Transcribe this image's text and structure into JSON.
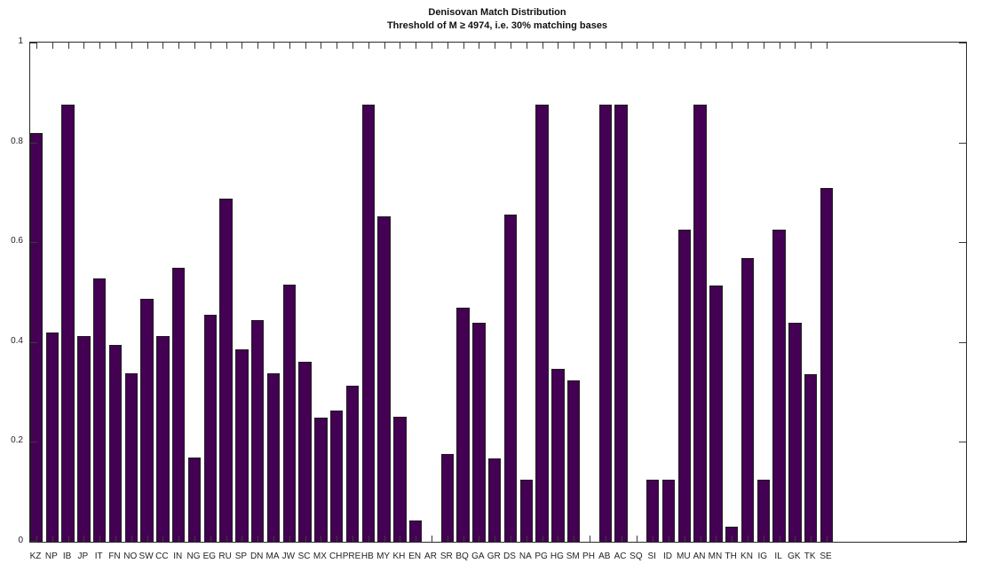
{
  "chart_data": {
    "type": "bar",
    "title": "Denisovan Match Distribution",
    "subtitle": "Threshold of M ≥ 4974, i.e. 30% matching bases",
    "xlabel": "",
    "ylabel": "",
    "ylim": [
      0,
      1
    ],
    "yticks": [
      0,
      0.2,
      0.4,
      0.6,
      0.8,
      1
    ],
    "ytick_labels": [
      "0",
      "0.2",
      "0.4",
      "0.6",
      "0.8",
      "1"
    ],
    "grid": false,
    "legend_position": "none",
    "bar_color": "#440154",
    "bar_edge_color": "#1c1c1c",
    "axis_color": "#2b2b2b",
    "categories": [
      "KZ",
      "NP",
      "IB",
      "JP",
      "IT",
      "FN",
      "NO",
      "SW",
      "CC",
      "IN",
      "NG",
      "EG",
      "RU",
      "SP",
      "DN",
      "MA",
      "JW",
      "SC",
      "MX",
      "CH",
      "PRE",
      "HB",
      "MY",
      "KH",
      "EN",
      "AR",
      "SR",
      "BQ",
      "GA",
      "GR",
      "DS",
      "NA",
      "PG",
      "HG",
      "SM",
      "PH",
      "AB",
      "AC",
      "SQ",
      "SI",
      "ID",
      "MU",
      "AN",
      "MN",
      "TH",
      "KN",
      "IG",
      "IL",
      "GK",
      "TK",
      "SE"
    ],
    "values": [
      0.818,
      0.419,
      0.875,
      0.412,
      0.527,
      0.394,
      0.337,
      0.486,
      0.412,
      0.549,
      0.168,
      0.455,
      0.688,
      0.385,
      0.444,
      0.337,
      0.515,
      0.361,
      0.249,
      0.263,
      0.313,
      0.875,
      0.652,
      0.25,
      0.042,
      0,
      0.175,
      0.469,
      0.438,
      0.167,
      0.656,
      0.125,
      0.875,
      0.347,
      0.324,
      0,
      0.875,
      0.875,
      0,
      0.125,
      0.125,
      0.625,
      0.875,
      0.514,
      0.031,
      0.569,
      0.125,
      0.625,
      0.438,
      0.335,
      0.708
    ]
  }
}
